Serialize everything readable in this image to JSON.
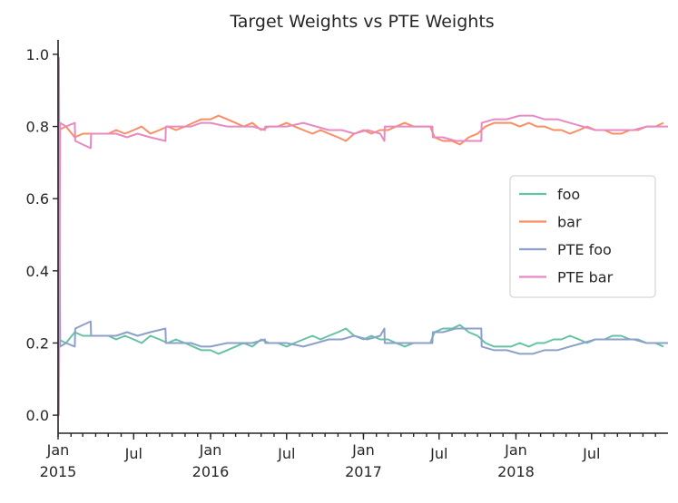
{
  "chart_data": {
    "type": "line",
    "title": "Target Weights vs PTE Weights",
    "xlabel": "",
    "ylabel": "",
    "ylim": [
      -0.05,
      1.04
    ],
    "xlim": [
      "2015-01-01",
      "2018-12-31"
    ],
    "yticks": [
      0.0,
      0.2,
      0.4,
      0.6,
      0.8,
      1.0
    ],
    "ytick_labels": [
      "0.0",
      "0.2",
      "0.4",
      "0.6",
      "0.8",
      "1.0"
    ],
    "xticks": [
      {
        "date": "2015-01-01",
        "label": "Jan\n2015"
      },
      {
        "date": "2015-07-01",
        "label": "Jul"
      },
      {
        "date": "2016-01-01",
        "label": "Jan\n2016"
      },
      {
        "date": "2016-07-01",
        "label": "Jul"
      },
      {
        "date": "2017-01-01",
        "label": "Jan\n2017"
      },
      {
        "date": "2017-07-01",
        "label": "Jul"
      },
      {
        "date": "2018-01-01",
        "label": "Jan\n2018"
      },
      {
        "date": "2018-07-01",
        "label": "Jul"
      }
    ],
    "grid": false,
    "legend_position": "center-right",
    "series": [
      {
        "name": "foo",
        "color": "#66c2a5",
        "points": [
          [
            "2015-01-02",
            0.21
          ],
          [
            "2015-01-20",
            0.2
          ],
          [
            "2015-02-10",
            0.23
          ],
          [
            "2015-03-01",
            0.22
          ],
          [
            "2015-04-01",
            0.22
          ],
          [
            "2015-05-01",
            0.22
          ],
          [
            "2015-05-20",
            0.21
          ],
          [
            "2015-06-10",
            0.22
          ],
          [
            "2015-07-01",
            0.21
          ],
          [
            "2015-07-20",
            0.2
          ],
          [
            "2015-08-10",
            0.22
          ],
          [
            "2015-09-01",
            0.21
          ],
          [
            "2015-09-20",
            0.2
          ],
          [
            "2015-10-10",
            0.21
          ],
          [
            "2015-11-01",
            0.2
          ],
          [
            "2015-11-20",
            0.19
          ],
          [
            "2015-12-10",
            0.18
          ],
          [
            "2016-01-01",
            0.18
          ],
          [
            "2016-01-20",
            0.17
          ],
          [
            "2016-02-10",
            0.18
          ],
          [
            "2016-03-01",
            0.19
          ],
          [
            "2016-03-20",
            0.2
          ],
          [
            "2016-04-10",
            0.19
          ],
          [
            "2016-05-01",
            0.21
          ],
          [
            "2016-05-20",
            0.2
          ],
          [
            "2016-06-10",
            0.2
          ],
          [
            "2016-07-01",
            0.19
          ],
          [
            "2016-07-20",
            0.2
          ],
          [
            "2016-08-10",
            0.21
          ],
          [
            "2016-09-01",
            0.22
          ],
          [
            "2016-09-20",
            0.21
          ],
          [
            "2016-10-10",
            0.22
          ],
          [
            "2016-11-01",
            0.23
          ],
          [
            "2016-11-20",
            0.24
          ],
          [
            "2016-12-10",
            0.22
          ],
          [
            "2017-01-01",
            0.21
          ],
          [
            "2017-01-20",
            0.22
          ],
          [
            "2017-02-10",
            0.21
          ],
          [
            "2017-03-01",
            0.21
          ],
          [
            "2017-03-20",
            0.2
          ],
          [
            "2017-04-10",
            0.19
          ],
          [
            "2017-05-01",
            0.2
          ],
          [
            "2017-05-20",
            0.2
          ],
          [
            "2017-06-10",
            0.2
          ],
          [
            "2017-06-20",
            0.23
          ],
          [
            "2017-07-10",
            0.24
          ],
          [
            "2017-08-01",
            0.24
          ],
          [
            "2017-08-20",
            0.25
          ],
          [
            "2017-09-10",
            0.23
          ],
          [
            "2017-10-01",
            0.22
          ],
          [
            "2017-10-20",
            0.2
          ],
          [
            "2017-11-10",
            0.19
          ],
          [
            "2017-12-01",
            0.19
          ],
          [
            "2017-12-20",
            0.19
          ],
          [
            "2018-01-10",
            0.2
          ],
          [
            "2018-02-01",
            0.19
          ],
          [
            "2018-02-20",
            0.2
          ],
          [
            "2018-03-10",
            0.2
          ],
          [
            "2018-04-01",
            0.21
          ],
          [
            "2018-04-20",
            0.21
          ],
          [
            "2018-05-10",
            0.22
          ],
          [
            "2018-06-01",
            0.21
          ],
          [
            "2018-06-20",
            0.2
          ],
          [
            "2018-07-10",
            0.21
          ],
          [
            "2018-08-01",
            0.21
          ],
          [
            "2018-08-20",
            0.22
          ],
          [
            "2018-09-10",
            0.22
          ],
          [
            "2018-10-01",
            0.21
          ],
          [
            "2018-10-20",
            0.21
          ],
          [
            "2018-11-10",
            0.2
          ],
          [
            "2018-12-01",
            0.2
          ],
          [
            "2018-12-20",
            0.19
          ]
        ]
      },
      {
        "name": "bar",
        "color": "#fc8d62",
        "points": [
          [
            "2015-01-02",
            0.79
          ],
          [
            "2015-01-20",
            0.8
          ],
          [
            "2015-02-10",
            0.77
          ],
          [
            "2015-03-01",
            0.78
          ],
          [
            "2015-04-01",
            0.78
          ],
          [
            "2015-05-01",
            0.78
          ],
          [
            "2015-05-20",
            0.79
          ],
          [
            "2015-06-10",
            0.78
          ],
          [
            "2015-07-01",
            0.79
          ],
          [
            "2015-07-20",
            0.8
          ],
          [
            "2015-08-10",
            0.78
          ],
          [
            "2015-09-01",
            0.79
          ],
          [
            "2015-09-20",
            0.8
          ],
          [
            "2015-10-10",
            0.79
          ],
          [
            "2015-11-01",
            0.8
          ],
          [
            "2015-11-20",
            0.81
          ],
          [
            "2015-12-10",
            0.82
          ],
          [
            "2016-01-01",
            0.82
          ],
          [
            "2016-01-20",
            0.83
          ],
          [
            "2016-02-10",
            0.82
          ],
          [
            "2016-03-01",
            0.81
          ],
          [
            "2016-03-20",
            0.8
          ],
          [
            "2016-04-10",
            0.81
          ],
          [
            "2016-05-01",
            0.79
          ],
          [
            "2016-05-20",
            0.8
          ],
          [
            "2016-06-10",
            0.8
          ],
          [
            "2016-07-01",
            0.81
          ],
          [
            "2016-07-20",
            0.8
          ],
          [
            "2016-08-10",
            0.79
          ],
          [
            "2016-09-01",
            0.78
          ],
          [
            "2016-09-20",
            0.79
          ],
          [
            "2016-10-10",
            0.78
          ],
          [
            "2016-11-01",
            0.77
          ],
          [
            "2016-11-20",
            0.76
          ],
          [
            "2016-12-10",
            0.78
          ],
          [
            "2017-01-01",
            0.79
          ],
          [
            "2017-01-20",
            0.78
          ],
          [
            "2017-02-10",
            0.79
          ],
          [
            "2017-03-01",
            0.79
          ],
          [
            "2017-03-20",
            0.8
          ],
          [
            "2017-04-10",
            0.81
          ],
          [
            "2017-05-01",
            0.8
          ],
          [
            "2017-05-20",
            0.8
          ],
          [
            "2017-06-10",
            0.8
          ],
          [
            "2017-06-20",
            0.77
          ],
          [
            "2017-07-10",
            0.76
          ],
          [
            "2017-08-01",
            0.76
          ],
          [
            "2017-08-20",
            0.75
          ],
          [
            "2017-09-10",
            0.77
          ],
          [
            "2017-10-01",
            0.78
          ],
          [
            "2017-10-20",
            0.8
          ],
          [
            "2017-11-10",
            0.81
          ],
          [
            "2017-12-01",
            0.81
          ],
          [
            "2017-12-20",
            0.81
          ],
          [
            "2018-01-10",
            0.8
          ],
          [
            "2018-02-01",
            0.81
          ],
          [
            "2018-02-20",
            0.8
          ],
          [
            "2018-03-10",
            0.8
          ],
          [
            "2018-04-01",
            0.79
          ],
          [
            "2018-04-20",
            0.79
          ],
          [
            "2018-05-10",
            0.78
          ],
          [
            "2018-06-01",
            0.79
          ],
          [
            "2018-06-20",
            0.8
          ],
          [
            "2018-07-10",
            0.79
          ],
          [
            "2018-08-01",
            0.79
          ],
          [
            "2018-08-20",
            0.78
          ],
          [
            "2018-09-10",
            0.78
          ],
          [
            "2018-10-01",
            0.79
          ],
          [
            "2018-10-20",
            0.79
          ],
          [
            "2018-11-10",
            0.8
          ],
          [
            "2018-12-01",
            0.8
          ],
          [
            "2018-12-20",
            0.81
          ]
        ]
      },
      {
        "name": "PTE foo",
        "color": "#8da0cb",
        "points": [
          [
            "2015-01-01",
            0.0
          ],
          [
            "2015-01-03",
            0.99
          ],
          [
            "2015-01-06",
            0.19
          ],
          [
            "2015-01-20",
            0.2
          ],
          [
            "2015-02-10",
            0.19
          ],
          [
            "2015-02-11",
            0.24
          ],
          [
            "2015-03-01",
            0.25
          ],
          [
            "2015-03-20",
            0.26
          ],
          [
            "2015-03-21",
            0.22
          ],
          [
            "2015-05-01",
            0.22
          ],
          [
            "2015-05-20",
            0.22
          ],
          [
            "2015-06-15",
            0.23
          ],
          [
            "2015-07-10",
            0.22
          ],
          [
            "2015-08-10",
            0.23
          ],
          [
            "2015-09-15",
            0.24
          ],
          [
            "2015-09-16",
            0.2
          ],
          [
            "2015-10-10",
            0.2
          ],
          [
            "2015-11-15",
            0.2
          ],
          [
            "2015-12-10",
            0.19
          ],
          [
            "2016-01-01",
            0.19
          ],
          [
            "2016-02-10",
            0.2
          ],
          [
            "2016-03-10",
            0.2
          ],
          [
            "2016-04-10",
            0.2
          ],
          [
            "2016-05-10",
            0.21
          ],
          [
            "2016-05-11",
            0.2
          ],
          [
            "2016-06-10",
            0.2
          ],
          [
            "2016-07-01",
            0.2
          ],
          [
            "2016-08-10",
            0.19
          ],
          [
            "2016-09-10",
            0.2
          ],
          [
            "2016-10-10",
            0.21
          ],
          [
            "2016-11-10",
            0.21
          ],
          [
            "2016-12-10",
            0.22
          ],
          [
            "2017-01-10",
            0.21
          ],
          [
            "2017-02-10",
            0.22
          ],
          [
            "2017-02-20",
            0.24
          ],
          [
            "2017-02-21",
            0.2
          ],
          [
            "2017-04-01",
            0.2
          ],
          [
            "2017-05-01",
            0.2
          ],
          [
            "2017-06-15",
            0.2
          ],
          [
            "2017-06-16",
            0.23
          ],
          [
            "2017-07-10",
            0.23
          ],
          [
            "2017-08-10",
            0.24
          ],
          [
            "2017-09-10",
            0.24
          ],
          [
            "2017-10-10",
            0.24
          ],
          [
            "2017-10-11",
            0.19
          ],
          [
            "2017-11-10",
            0.18
          ],
          [
            "2017-12-10",
            0.18
          ],
          [
            "2018-01-10",
            0.17
          ],
          [
            "2018-02-10",
            0.17
          ],
          [
            "2018-03-10",
            0.18
          ],
          [
            "2018-04-10",
            0.18
          ],
          [
            "2018-05-10",
            0.19
          ],
          [
            "2018-06-10",
            0.2
          ],
          [
            "2018-07-10",
            0.21
          ],
          [
            "2018-08-10",
            0.21
          ],
          [
            "2018-09-10",
            0.21
          ],
          [
            "2018-10-10",
            0.21
          ],
          [
            "2018-11-10",
            0.2
          ],
          [
            "2018-12-01",
            0.2
          ],
          [
            "2018-12-31",
            0.2
          ]
        ]
      },
      {
        "name": "PTE bar",
        "color": "#e78ac3",
        "points": [
          [
            "2015-01-01",
            1.0
          ],
          [
            "2015-01-03",
            0.0
          ],
          [
            "2015-01-06",
            0.81
          ],
          [
            "2015-01-20",
            0.8
          ],
          [
            "2015-02-10",
            0.81
          ],
          [
            "2015-02-11",
            0.76
          ],
          [
            "2015-03-01",
            0.75
          ],
          [
            "2015-03-20",
            0.74
          ],
          [
            "2015-03-21",
            0.78
          ],
          [
            "2015-05-01",
            0.78
          ],
          [
            "2015-05-20",
            0.78
          ],
          [
            "2015-06-15",
            0.77
          ],
          [
            "2015-07-10",
            0.78
          ],
          [
            "2015-08-10",
            0.77
          ],
          [
            "2015-09-15",
            0.76
          ],
          [
            "2015-09-16",
            0.8
          ],
          [
            "2015-10-10",
            0.8
          ],
          [
            "2015-11-15",
            0.8
          ],
          [
            "2015-12-10",
            0.81
          ],
          [
            "2016-01-01",
            0.81
          ],
          [
            "2016-02-10",
            0.8
          ],
          [
            "2016-03-10",
            0.8
          ],
          [
            "2016-04-10",
            0.8
          ],
          [
            "2016-05-10",
            0.79
          ],
          [
            "2016-05-11",
            0.8
          ],
          [
            "2016-06-10",
            0.8
          ],
          [
            "2016-07-01",
            0.8
          ],
          [
            "2016-08-10",
            0.81
          ],
          [
            "2016-09-10",
            0.8
          ],
          [
            "2016-10-10",
            0.79
          ],
          [
            "2016-11-10",
            0.79
          ],
          [
            "2016-12-10",
            0.78
          ],
          [
            "2017-01-10",
            0.79
          ],
          [
            "2017-02-10",
            0.78
          ],
          [
            "2017-02-20",
            0.76
          ],
          [
            "2017-02-21",
            0.8
          ],
          [
            "2017-04-01",
            0.8
          ],
          [
            "2017-05-01",
            0.8
          ],
          [
            "2017-06-15",
            0.8
          ],
          [
            "2017-06-16",
            0.77
          ],
          [
            "2017-07-10",
            0.77
          ],
          [
            "2017-08-10",
            0.76
          ],
          [
            "2017-09-10",
            0.76
          ],
          [
            "2017-10-10",
            0.76
          ],
          [
            "2017-10-11",
            0.81
          ],
          [
            "2017-11-10",
            0.82
          ],
          [
            "2017-12-10",
            0.82
          ],
          [
            "2018-01-10",
            0.83
          ],
          [
            "2018-02-10",
            0.83
          ],
          [
            "2018-03-10",
            0.82
          ],
          [
            "2018-04-10",
            0.82
          ],
          [
            "2018-05-10",
            0.81
          ],
          [
            "2018-06-10",
            0.8
          ],
          [
            "2018-07-10",
            0.79
          ],
          [
            "2018-08-10",
            0.79
          ],
          [
            "2018-09-10",
            0.79
          ],
          [
            "2018-10-10",
            0.79
          ],
          [
            "2018-11-10",
            0.8
          ],
          [
            "2018-12-01",
            0.8
          ],
          [
            "2018-12-31",
            0.8
          ]
        ]
      }
    ]
  }
}
